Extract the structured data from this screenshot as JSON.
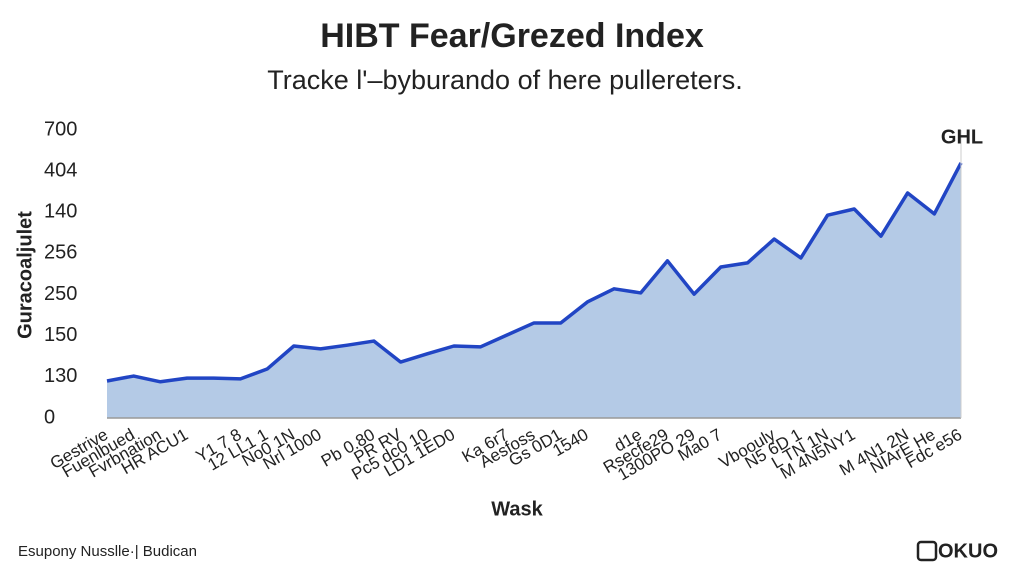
{
  "chart_data": {
    "type": "area",
    "title": "HIBT Fear/Grezed Index",
    "subtitle": "Tracke l'–byburando of here pullereters.",
    "y_label": "Guracoaljulet",
    "x_label": "Wask",
    "annotation": "GHL",
    "categories": [
      "Gestrive",
      "Fuenlbued",
      "Fvrbnation",
      "HR ACU1",
      null,
      "Y1 7 8",
      "12 LL1 1",
      "No0 1N",
      "Nrl 1000",
      null,
      "Pb 0.80",
      "PR RV",
      "Pc5 dc0 10",
      "LD1 1ED0",
      null,
      "Ka 6r7",
      "Aesfoss",
      "Gs 0D1",
      "1540",
      null,
      "d1e",
      "Rsecfe29",
      "1300PO 29",
      "Ma0 7",
      null,
      "Vboouly",
      "N5 6D 1",
      "L TN 1N",
      "M 4N5NY1",
      null,
      "M 4N1 2N",
      "NIArE He",
      "Fdc e56"
    ],
    "series": [
      {
        "name": "GHL",
        "color": "#2145c4",
        "fill": "#b4cae6",
        "values": [
          0.9,
          1.02,
          0.88,
          0.97,
          0.97,
          0.95,
          1.19,
          1.75,
          1.68,
          1.77,
          1.87,
          1.36,
          1.56,
          1.75,
          1.73,
          2.02,
          2.31,
          2.31,
          2.82,
          3.14,
          3.04,
          3.82,
          3.01,
          3.67,
          3.77,
          4.35,
          3.89,
          4.93,
          5.08,
          4.42,
          5.47,
          4.96,
          6.2
        ]
      }
    ],
    "ylim": [
      0,
      7
    ],
    "yticks": [
      {
        "value": 0,
        "label": "0"
      },
      {
        "value": 1,
        "label": "130"
      },
      {
        "value": 2,
        "label": "150"
      },
      {
        "value": 3,
        "label": "250"
      },
      {
        "value": 4,
        "label": "256"
      },
      {
        "value": 5,
        "label": "140"
      },
      {
        "value": 6,
        "label": "404"
      },
      {
        "value": 7,
        "label": "700"
      }
    ],
    "grid": false
  },
  "footer": {
    "source": "Esupony Nusslle·| Budican",
    "logo": "OKUO"
  }
}
